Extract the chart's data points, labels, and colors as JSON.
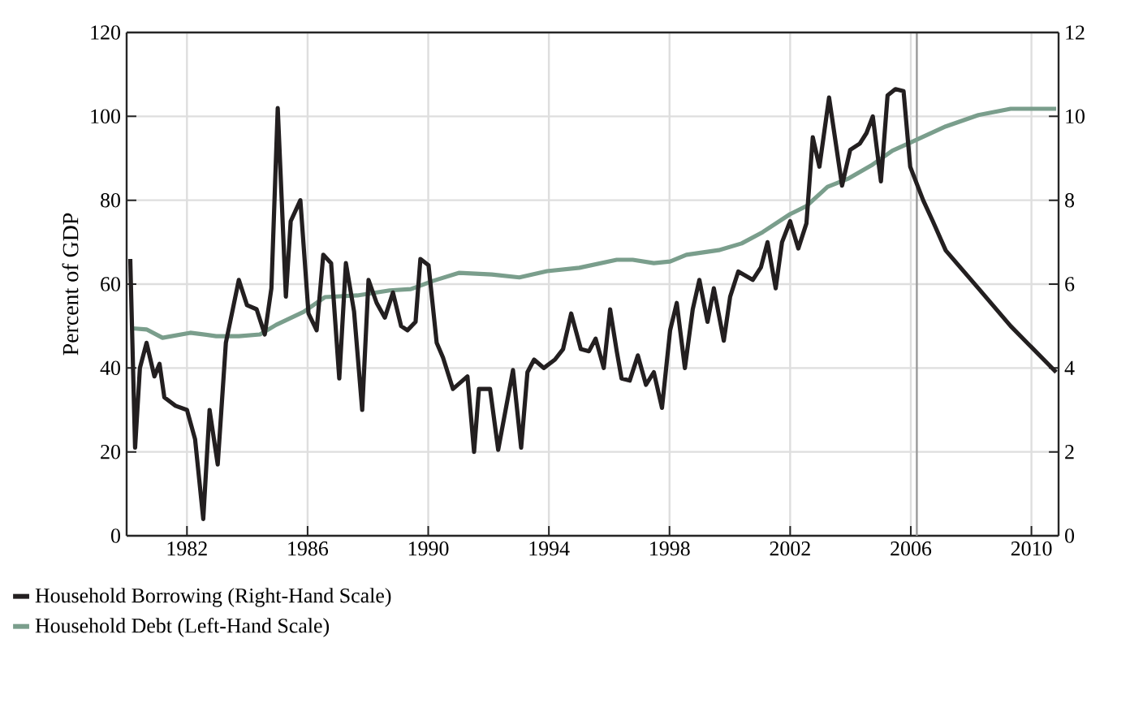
{
  "chart_data": {
    "type": "line",
    "ylabel": "Percent of GDP",
    "xlim": [
      1980,
      2010.9
    ],
    "xticks": [
      1982,
      1986,
      1990,
      1994,
      1998,
      2002,
      2006,
      2010
    ],
    "ylim": [
      0,
      120
    ],
    "yticks": [
      0,
      20,
      40,
      60,
      80,
      100,
      120
    ],
    "y2lim": [
      0,
      12
    ],
    "y2ticks": [
      0,
      2,
      4,
      6,
      8,
      10,
      12
    ],
    "grid": true,
    "legend": "bottom",
    "ref_lines": [
      {
        "axis": "x",
        "value": 2006.2,
        "color": "#9a9a9a"
      }
    ],
    "series": [
      {
        "name": "Household Borrowing (Right-Hand Scale)",
        "color": "#231f20",
        "axis": "y2",
        "x": [
          1980.12,
          1980.28,
          1980.44,
          1980.66,
          1980.92,
          1981.09,
          1981.25,
          1981.62,
          1982.0,
          1982.27,
          1982.54,
          1982.75,
          1983.02,
          1983.29,
          1983.72,
          1983.99,
          1984.31,
          1984.58,
          1984.8,
          1985.01,
          1985.28,
          1985.44,
          1985.76,
          1986.03,
          1986.3,
          1986.52,
          1986.78,
          1987.05,
          1987.27,
          1987.54,
          1987.81,
          1988.02,
          1988.29,
          1988.56,
          1988.83,
          1989.1,
          1989.31,
          1989.58,
          1989.74,
          1990.01,
          1990.28,
          1990.49,
          1990.82,
          1991.3,
          1991.52,
          1991.68,
          1992.05,
          1992.32,
          1992.81,
          1993.08,
          1993.29,
          1993.51,
          1993.83,
          1994.2,
          1994.47,
          1994.74,
          1995.06,
          1995.33,
          1995.55,
          1995.82,
          1996.03,
          1996.25,
          1996.41,
          1996.68,
          1996.95,
          1997.22,
          1997.48,
          1997.75,
          1998.02,
          1998.24,
          1998.51,
          1998.77,
          1998.99,
          1999.26,
          1999.47,
          1999.8,
          2000.01,
          2000.28,
          2000.76,
          2001.03,
          2001.25,
          2001.52,
          2001.73,
          2002.0,
          2002.27,
          2002.54,
          2002.75,
          2002.97,
          2003.29,
          2003.72,
          2003.99,
          2004.31,
          2004.53,
          2004.74,
          2005.01,
          2005.23,
          2005.49,
          2005.76,
          2005.98,
          2006.41,
          2006.73,
          2007.16,
          2008.24,
          2009.31,
          2010.82
        ],
        "values": [
          6.6,
          2.1,
          4.0,
          4.6,
          3.8,
          4.1,
          3.3,
          3.1,
          3.0,
          2.3,
          0.4,
          3.0,
          1.7,
          4.6,
          6.1,
          5.5,
          5.4,
          4.8,
          5.9,
          10.2,
          5.7,
          7.5,
          8.0,
          5.3,
          4.9,
          6.7,
          6.5,
          3.75,
          6.5,
          5.35,
          3.0,
          6.1,
          5.55,
          5.2,
          5.8,
          5.0,
          4.9,
          5.1,
          6.6,
          6.45,
          4.6,
          4.25,
          3.5,
          3.8,
          2.0,
          3.5,
          3.5,
          2.05,
          3.95,
          2.1,
          3.9,
          4.2,
          4.0,
          4.2,
          4.45,
          5.3,
          4.45,
          4.4,
          4.7,
          4.0,
          5.4,
          4.4,
          3.75,
          3.7,
          4.3,
          3.6,
          3.9,
          3.05,
          4.9,
          5.55,
          4.0,
          5.4,
          6.1,
          5.1,
          5.9,
          4.65,
          5.7,
          6.3,
          6.1,
          6.4,
          7.0,
          5.9,
          7.0,
          7.5,
          6.85,
          7.45,
          9.5,
          8.8,
          10.45,
          8.35,
          9.2,
          9.35,
          9.6,
          10.0,
          8.45,
          10.5,
          10.65,
          10.6,
          8.8,
          8.0,
          7.5,
          6.8,
          5.9,
          5.0,
          3.9
        ]
      },
      {
        "name": "Household Debt (Left-Hand Scale)",
        "color": "#7a9e8c",
        "x": [
          1980.12,
          1980.66,
          1981.19,
          1982.11,
          1982.97,
          1983.72,
          1984.42,
          1984.96,
          1985.87,
          1986.57,
          1987.65,
          1988.72,
          1989.42,
          1990.17,
          1991.03,
          1992.11,
          1993.02,
          1993.94,
          1995.01,
          1996.25,
          1996.78,
          1997.48,
          1998.02,
          1998.56,
          1999.63,
          2000.39,
          2001.09,
          2002.0,
          2002.54,
          2003.24,
          2003.94,
          2004.69,
          2005.39,
          2006.09,
          2007.16,
          2008.24,
          2009.31,
          2010.82
        ],
        "values": [
          49.5,
          49.2,
          47.2,
          48.4,
          47.6,
          47.6,
          48.0,
          50.3,
          53.4,
          56.9,
          57.3,
          58.5,
          58.8,
          60.8,
          62.7,
          62.3,
          61.6,
          63.1,
          63.9,
          65.8,
          65.8,
          65.0,
          65.4,
          67.0,
          68.1,
          69.7,
          72.4,
          76.7,
          78.6,
          83.2,
          85.2,
          88.3,
          91.8,
          94.1,
          97.6,
          100.3,
          101.8,
          101.8
        ]
      }
    ]
  }
}
